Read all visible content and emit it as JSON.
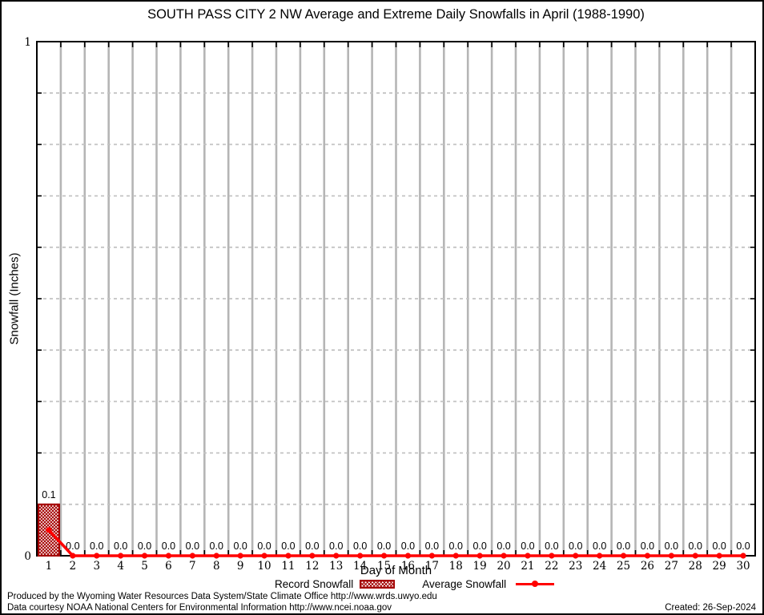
{
  "chart_data": {
    "type": "bar",
    "title": "SOUTH PASS CITY 2 NW Average and Extreme Daily Snowfalls in April (1988-1990)",
    "xlabel": "Day of Month",
    "ylabel": "Snowfall (Inches)",
    "ylim": [
      0,
      1
    ],
    "ytick_labels": [
      "0",
      "1"
    ],
    "ytick_minor_step": 0.1,
    "grid_on": true,
    "grid_color": "#b5b5b5",
    "legend_position": "bottom-center",
    "x": [
      1,
      2,
      3,
      4,
      5,
      6,
      7,
      8,
      9,
      10,
      11,
      12,
      13,
      14,
      15,
      16,
      17,
      18,
      19,
      20,
      21,
      22,
      23,
      24,
      25,
      26,
      27,
      28,
      29,
      30
    ],
    "series": [
      {
        "name": "Record Snowfall",
        "type": "bar",
        "color": "#a40000",
        "values": [
          0.1,
          0,
          0,
          0,
          0,
          0,
          0,
          0,
          0,
          0,
          0,
          0,
          0,
          0,
          0,
          0,
          0,
          0,
          0,
          0,
          0,
          0,
          0,
          0,
          0,
          0,
          0,
          0,
          0,
          0
        ]
      },
      {
        "name": "Average Snowfall",
        "type": "line",
        "color": "#ff0000",
        "values": [
          0.05,
          0,
          0,
          0,
          0,
          0,
          0,
          0,
          0,
          0,
          0,
          0,
          0,
          0,
          0,
          0,
          0,
          0,
          0,
          0,
          0,
          0,
          0,
          0,
          0,
          0,
          0,
          0,
          0,
          0
        ]
      }
    ],
    "bar_value_labels": [
      "0.1",
      "0.0",
      "0.0",
      "0.0",
      "0.0",
      "0.0",
      "0.0",
      "0.0",
      "0.0",
      "0.0",
      "0.0",
      "0.0",
      "0.0",
      "0.0",
      "0.0",
      "0.0",
      "0.0",
      "0.0",
      "0.0",
      "0.0",
      "0.0",
      "0.0",
      "0.0",
      "0.0",
      "0.0",
      "0.0",
      "0.0",
      "0.0",
      "0.0",
      "0.0"
    ]
  },
  "footer": {
    "line1": "Produced by the Wyoming Water Resources Data System/State Climate Office http://www.wrds.uwyo.edu",
    "line2": "Data courtesy NOAA National Centers for Environmental Information http://www.ncei.noaa.gov",
    "created": "Created: 26-Sep-2024"
  }
}
